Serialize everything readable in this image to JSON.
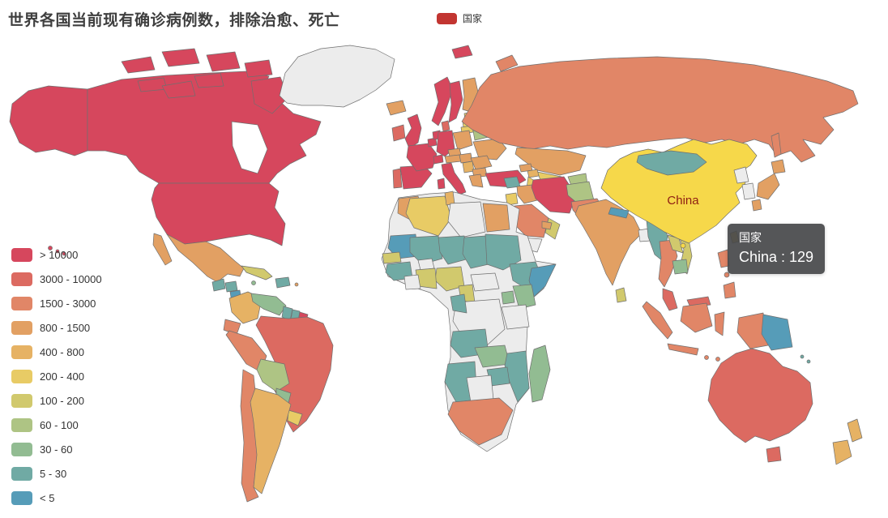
{
  "title": "世界各国当前现有确诊病例数，排除治愈、死亡",
  "series_legend": {
    "label": "国家",
    "color": "#c23531"
  },
  "tooltip": {
    "series_name": "国家",
    "country": "China",
    "value": 129,
    "value_line": "China : 129"
  },
  "map": {
    "china_label": "China",
    "china_label_color": "#8e1d12",
    "highlight_color": "#f6d84a",
    "no_data_color": "#ececec",
    "border_color": "#6f6f6f",
    "hovered_region": "China"
  },
  "chart_data": {
    "type": "heatmap",
    "subtype": "world-choropleth-map",
    "title": "世界各国当前现有确诊病例数，排除治愈、死亡",
    "series_name": "国家",
    "legend_position": "bottom-left",
    "hover_tooltip": {
      "name": "China",
      "value": 129
    },
    "legend_pieces": [
      {
        "label": "> 10000",
        "color": "#d6475d"
      },
      {
        "label": "3000 - 10000",
        "color": "#dc6a61"
      },
      {
        "label": "1500 - 3000",
        "color": "#e18667"
      },
      {
        "label": "800 - 1500",
        "color": "#e2a063"
      },
      {
        "label": "400 - 800",
        "color": "#e6b264"
      },
      {
        "label": "200 - 400",
        "color": "#e8cb65"
      },
      {
        "label": "100 - 200",
        "color": "#d1c96d"
      },
      {
        "label": "60 - 100",
        "color": "#aec484"
      },
      {
        "label": "30 - 60",
        "color": "#92bc92"
      },
      {
        "label": "5 - 30",
        "color": "#70aaa4"
      },
      {
        "label": "< 5",
        "color": "#569cb8"
      }
    ],
    "countries": {
      "United States": "> 10000",
      "Canada": "> 10000",
      "Greenland": "no_data",
      "Iceland": "800 - 1500",
      "Mexico": "800 - 1500",
      "Guatemala": "5 - 30",
      "Honduras": "5 - 30",
      "Nicaragua": "< 5",
      "Costa Rica": "200 - 400",
      "Panama": "800 - 1500",
      "Cuba": "100 - 200",
      "Jamaica": "30 - 60",
      "Dominican Republic": "5 - 30",
      "Puerto Rico": "800 - 1500",
      "Colombia": "400 - 800",
      "Venezuela": "30 - 60",
      "Guyana": "5 - 30",
      "Suriname": "5 - 30",
      "French Guiana": "> 10000",
      "Ecuador": "1500 - 3000",
      "Peru": "1500 - 3000",
      "Brazil": "3000 - 10000",
      "Bolivia": "60 - 100",
      "Paraguay": "30 - 60",
      "Uruguay": "200 - 400",
      "Chile": "1500 - 3000",
      "Argentina": "400 - 800",
      "Ireland": "3000 - 10000",
      "United Kingdom": "> 10000",
      "Portugal": "3000 - 10000",
      "Spain": "> 10000",
      "France": "> 10000",
      "Belgium": "> 10000",
      "Netherlands": "> 10000",
      "Germany": "> 10000",
      "Denmark": "3000 - 10000",
      "Norway": "> 10000",
      "Sweden": "> 10000",
      "Finland": "800 - 1500",
      "Estonia": "200 - 400",
      "Latvia": "200 - 400",
      "Lithuania": "200 - 400",
      "Poland": "800 - 1500",
      "Belarus": "60 - 100",
      "Ukraine": "800 - 1500",
      "Czechia": "800 - 1500",
      "Austria": "800 - 1500",
      "Switzerland": "> 10000",
      "Hungary": "800 - 1500",
      "Romania": "800 - 1500",
      "Serbia": "400 - 800",
      "Bulgaria": "800 - 1500",
      "Italy": "> 10000",
      "Greece": "800 - 1500",
      "Turkey": "> 10000",
      "Russia": "1500 - 3000",
      "Kazakhstan": "800 - 1500",
      "Uzbekistan": "200 - 400",
      "Turkmenistan": "200 - 400",
      "Kyrgyzstan": "60 - 100",
      "Georgia": "800 - 1500",
      "Azerbaijan": "400 - 800",
      "Syria": "5 - 30",
      "Jordan": "200 - 400",
      "Iraq": "800 - 1500",
      "Iran": "> 10000",
      "Saudi Arabia": "1500 - 3000",
      "Yemen": "no_data",
      "Oman": "100 - 200",
      "United Arab Emirates": "800 - 1500",
      "Afghanistan": "60 - 100",
      "Pakistan": "1500 - 3000",
      "India": "800 - 1500",
      "Nepal": "< 5",
      "Bangladesh": "no_data",
      "Sri Lanka": "100 - 200",
      "Myanmar": "5 - 30",
      "Thailand": "1500 - 3000",
      "Laos": "100 - 200",
      "Vietnam": "100 - 200",
      "Cambodia": "30 - 60",
      "Malaysia": "3000 - 10000",
      "Indonesia": "1500 - 3000",
      "Philippines": "1500 - 3000",
      "Taiwan": "200 - 400",
      "Japan": "800 - 1500",
      "South Korea": "no_data",
      "North Korea": "no_data",
      "Mongolia": "5 - 30",
      "China": "100 - 200",
      "Morocco": "800 - 1500",
      "Algeria": "200 - 400",
      "Tunisia": "400 - 800",
      "Libya": "no_data",
      "Egypt": "800 - 1500",
      "Mauritania": "< 5",
      "Senegal": "100 - 200",
      "Guinea": "5 - 30",
      "Mali": "5 - 30",
      "Burkina Faso": "no_data",
      "Niger": "5 - 30",
      "Chad": "5 - 30",
      "Sudan": "5 - 30",
      "Ethiopia": "5 - 30",
      "Somalia": "< 5",
      "Kenya": "30 - 60",
      "Nigeria": "100 - 200",
      "Ghana": "100 - 200",
      "Ivory Coast": "no_data",
      "Cameroon": "100 - 200",
      "Central African Republic": "no_data",
      "DR Congo": "no_data",
      "Gabon": "5 - 30",
      "Uganda": "30 - 60",
      "Tanzania": "no_data",
      "Angola": "5 - 30",
      "Zambia": "30 - 60",
      "Mozambique": "5 - 30",
      "Zimbabwe": "5 - 30",
      "Namibia": "5 - 30",
      "Botswana": "no_data",
      "South Africa": "1500 - 3000",
      "Madagascar": "30 - 60",
      "Papua New Guinea": "< 5",
      "Solomon Islands": "5 - 30",
      "Australia": "3000 - 10000",
      "New Zealand": "400 - 800",
      "Africa (no data)": "no_data"
    }
  }
}
